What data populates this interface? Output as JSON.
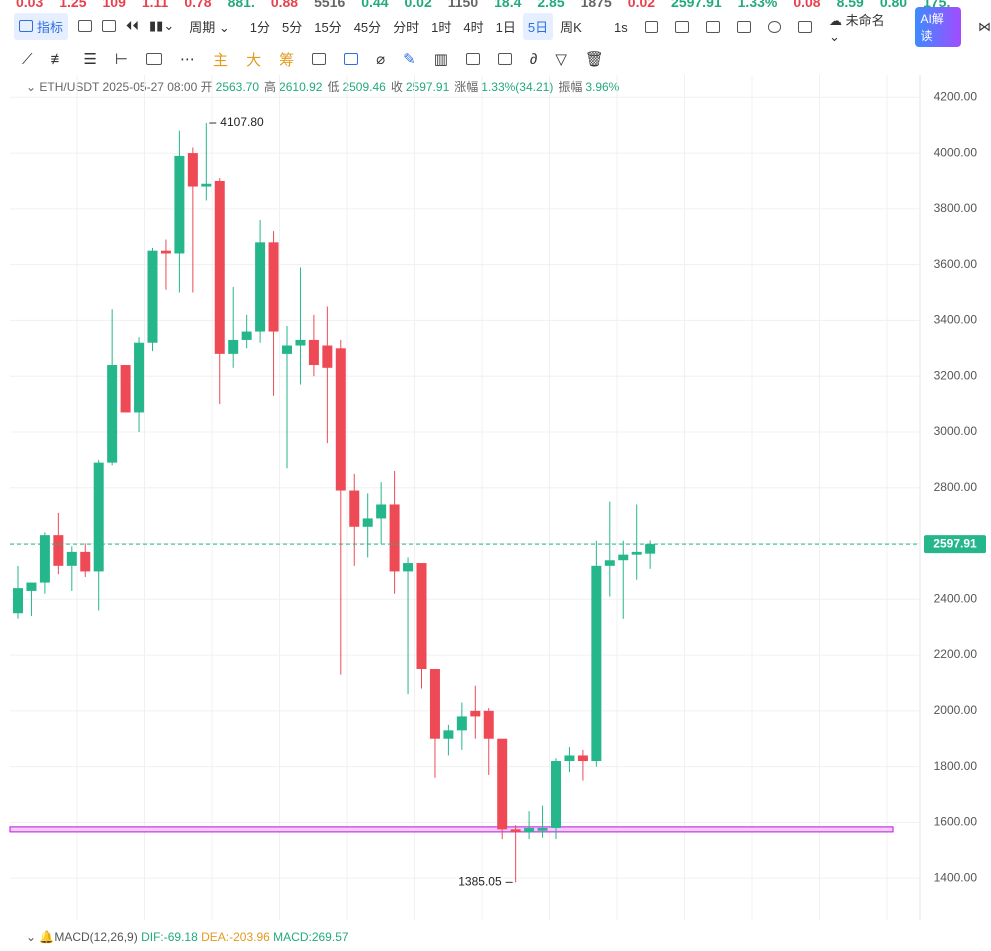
{
  "ticker": [
    {
      "text": "0.03",
      "color": "#e8414d"
    },
    {
      "text": "1.25",
      "color": "#e8414d"
    },
    {
      "text": "109",
      "color": "#e8414d"
    },
    {
      "text": "1.11",
      "color": "#e8414d"
    },
    {
      "text": "0.78",
      "color": "#e8414d"
    },
    {
      "text": "881.",
      "color": "#22a97f"
    },
    {
      "text": "0.88",
      "color": "#e8414d"
    },
    {
      "text": "5516",
      "color": "#666666"
    },
    {
      "text": "0.44",
      "color": "#22a97f"
    },
    {
      "text": "0.02",
      "color": "#22a97f"
    },
    {
      "text": "1150",
      "color": "#666666"
    },
    {
      "text": "18.4",
      "color": "#22a97f"
    },
    {
      "text": "2.85",
      "color": "#22a97f"
    },
    {
      "text": "1875",
      "color": "#666666"
    },
    {
      "text": "0.02",
      "color": "#e8414d"
    },
    {
      "text": "2597.91",
      "color": "#22a97f"
    },
    {
      "text": "1.33%",
      "color": "#22a97f"
    },
    {
      "text": "0.08",
      "color": "#e8414d"
    },
    {
      "text": "8.59",
      "color": "#22a97f"
    },
    {
      "text": "0.80",
      "color": "#22a97f"
    },
    {
      "text": "175.",
      "color": "#22a97f"
    }
  ],
  "toolbar": {
    "indicator": "指标",
    "period": "周期",
    "intervals": [
      "1分",
      "5分",
      "15分",
      "45分",
      "分时",
      "1时",
      "4时",
      "1日",
      "5日",
      "周K"
    ],
    "active_interval": "5日",
    "speed": "1s",
    "layout_name": "未命名",
    "ai": "AI解读"
  },
  "drawing_tools": [
    "主",
    "大",
    "筹"
  ],
  "info": {
    "symbol": "ETH/USDT",
    "time": "2025-05-27 08:00",
    "fields": [
      {
        "label": "开",
        "value": "2563.70"
      },
      {
        "label": "高",
        "value": "2610.92"
      },
      {
        "label": "低",
        "value": "2509.46"
      },
      {
        "label": "收",
        "value": "2597.91"
      },
      {
        "label": "涨幅",
        "value": "1.33%(34.21)"
      },
      {
        "label": "振幅",
        "value": "3.96%"
      }
    ]
  },
  "chart_data": {
    "type": "candlestick",
    "up_color": "#26b68b",
    "down_color": "#ee4a56",
    "open": [
      2350,
      2430,
      2460,
      2630,
      2520,
      2570,
      2500,
      2890,
      3240,
      3070,
      3320,
      3650,
      3640,
      4000,
      3880,
      3900,
      3280,
      3330,
      3360,
      3680,
      3280,
      3310,
      3330,
      3310,
      3300,
      2790,
      2660,
      2690,
      2740,
      2500,
      2530,
      2150,
      1900,
      1930,
      2000,
      2000,
      1900,
      1575,
      1565,
      1570,
      1580,
      1820,
      1840,
      1820,
      2520,
      2540,
      2560,
      2563.7
    ],
    "high": [
      2520,
      2460,
      2640,
      2710,
      2590,
      2600,
      2900,
      3440,
      3240,
      3340,
      3660,
      3690,
      4080,
      4020,
      4107.8,
      3910,
      3520,
      3420,
      3760,
      3720,
      3380,
      3590,
      3420,
      3450,
      3330,
      2850,
      2780,
      2820,
      2860,
      2550,
      2530,
      2150,
      1950,
      2030,
      2090,
      2010,
      1900,
      1590,
      1640,
      1660,
      1830,
      1870,
      1860,
      2610,
      2750,
      2610,
      2740,
      2610.92
    ],
    "low": [
      2330,
      2340,
      2420,
      2490,
      2430,
      2480,
      2360,
      2880,
      3070,
      3000,
      3290,
      3510,
      3500,
      3500,
      3830,
      3100,
      3230,
      3300,
      3320,
      3130,
      2870,
      3170,
      3200,
      2960,
      2130,
      2520,
      2550,
      2600,
      2420,
      2060,
      2080,
      1760,
      1840,
      1860,
      1900,
      1770,
      1540,
      1385.05,
      1540,
      1545,
      1540,
      1780,
      1750,
      1800,
      2410,
      2330,
      2470,
      2509.46
    ],
    "close": [
      2440,
      2460,
      2630,
      2520,
      2570,
      2500,
      2890,
      3240,
      3070,
      3320,
      3650,
      3640,
      3990,
      3880,
      3890,
      3280,
      3330,
      3360,
      3680,
      3360,
      3310,
      3330,
      3240,
      3230,
      2790,
      2660,
      2690,
      2740,
      2500,
      2530,
      2150,
      1900,
      1930,
      1980,
      1980,
      1900,
      1575,
      1565,
      1580,
      1580,
      1820,
      1840,
      1820,
      2520,
      2540,
      2560,
      2570,
      2597.91
    ],
    "ylim": [
      1250,
      4280
    ],
    "yticks": [
      {
        "value": 1400,
        "label": "1400.00"
      },
      {
        "value": 1600,
        "label": "1600.00"
      },
      {
        "value": 1800,
        "label": "1800.00"
      },
      {
        "value": 2000,
        "label": "2000.00"
      },
      {
        "value": 2200,
        "label": "2200.00"
      },
      {
        "value": 2400,
        "label": "2400.00"
      },
      {
        "value": 2600,
        "label": "2600.00"
      },
      {
        "value": 2800,
        "label": "2800.00"
      },
      {
        "value": 3000,
        "label": "3000.00"
      },
      {
        "value": 3200,
        "label": "3200.00"
      },
      {
        "value": 3400,
        "label": "3400.00"
      },
      {
        "value": 3600,
        "label": "3600.00"
      },
      {
        "value": 3800,
        "label": "3800.00"
      },
      {
        "value": 4000,
        "label": "4000.00"
      },
      {
        "value": 4200,
        "label": "4200.00"
      }
    ],
    "grid": true,
    "high_label": "4107.80",
    "low_label": "1385.05",
    "price_label": "2597.91",
    "hline": 1575,
    "hline_color": "#c636e6"
  },
  "indicator": {
    "name": "MACD(12,26,9)",
    "dif": "DIF:-69.18",
    "dea": "DEA:-203.96",
    "macd": "MACD:269.57"
  }
}
